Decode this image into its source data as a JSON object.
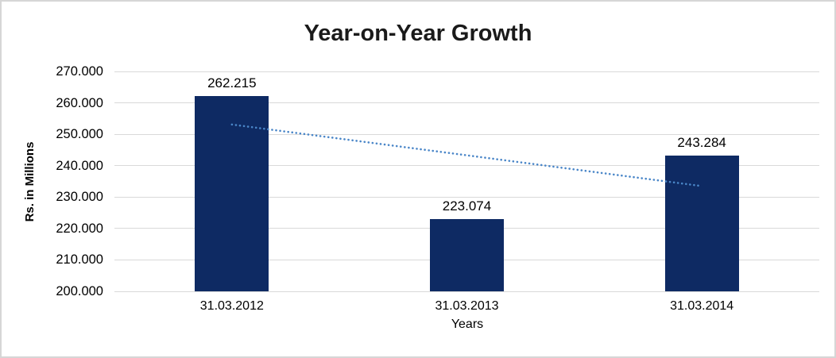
{
  "chart_data": {
    "type": "bar",
    "title": "Year-on-Year Growth",
    "categories": [
      "31.03.2012",
      "31.03.2013",
      "31.03.2014"
    ],
    "values": [
      262.215,
      223.074,
      243.284
    ],
    "value_labels": [
      "262.215",
      "223.074",
      "243.284"
    ],
    "xlabel": "Years",
    "ylabel": "Rs. in Millions",
    "ylim": [
      200,
      270
    ],
    "ytick_step": 10,
    "yticks": [
      "270.000",
      "260.000",
      "250.000",
      "240.000",
      "230.000",
      "220.000",
      "210.000",
      "200.000"
    ],
    "grid": true,
    "legend": false,
    "trendline": {
      "type": "linear",
      "style": "dotted",
      "color": "#4a86c8",
      "start_value": 253.1,
      "end_value": 233.5
    },
    "colors": {
      "bar": "#0e2a63",
      "gridline": "#d9d9d9",
      "title": "#1a1a1a",
      "text": "#000000"
    }
  }
}
